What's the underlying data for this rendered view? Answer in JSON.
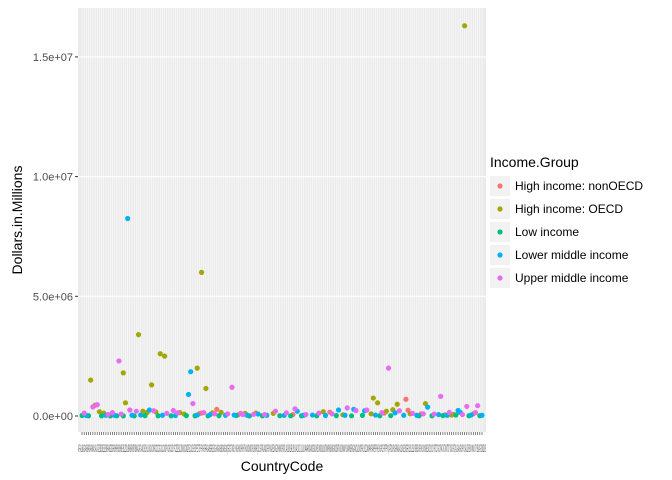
{
  "chart_data": {
    "type": "scatter",
    "title": "",
    "xlabel": "CountryCode",
    "ylabel": "Dollars.in.Millions",
    "ylim": [
      -400000,
      17000000
    ],
    "yticks": [
      0,
      5000000,
      10000000,
      15000000
    ],
    "ytick_labels": [
      "0.0e+00",
      "5.0e+06",
      "1.0e+07",
      "1.5e+07"
    ],
    "grid": true,
    "legend": {
      "title": "Income.Group",
      "position": "right"
    },
    "xtick_visible_text": "AFGALBAGOARBARGARMAUSAUTAZEBDIBELBENBFABGDBGRBHRBHSBIHBLRBLZBOLBRABRNBTNBWACAFCANCHECHLCHNCIVCMRCODCOGCOLCOMCPVCRICUBCYPCZEDEUDJIDNKDOMDZAECUEGYESPESTETHFINFJIFRAGABGBRGEOGHAGINGMBGNBGNQGRCGTMGUYHKGHNDHRVHTIHUNIDNINDIRLIRNIRQISLISRITAJAMJORJPNKAZKENKGZKHMKORKWTLAOLBNLBRLBYLKALSOLTULUXLVAMARMDAMDGMDVMEXMKDMLIMLTMMRMNEMNGMOZMRTMUSMWIMYSNAMNERNGANICNLDNORNPLNZLOMNPAKPANPERPHLPNGPOLPRTPRYQATROURUSRWASAUSDNSENSGPSLBSLESLVSRBSURSVKSVNSWESWZSYCSYRTCDTGOTHATJKTKMTTOTUNTURTZAUGAUKRURYUSAUZBVENVNMVUTYEMZAFZMBZWE",
    "series": [
      {
        "name": "High income: nonOECD",
        "color": "#F8766D",
        "points": [
          [
            54,
            100000
          ],
          [
            55,
            120000
          ],
          [
            62,
            280000
          ],
          [
            72,
            60000
          ],
          [
            75,
            80000
          ],
          [
            97,
            60000
          ],
          [
            114,
            160000
          ],
          [
            139,
            120000
          ],
          [
            149,
            700000
          ],
          [
            150,
            240000
          ],
          [
            156,
            90000
          ],
          [
            167,
            50000
          ],
          [
            171,
            70000
          ]
        ]
      },
      {
        "name": "High income: OECD",
        "color": "#A3A500",
        "points": [
          [
            4,
            1500000
          ],
          [
            6,
            450000
          ],
          [
            8,
            180000
          ],
          [
            10,
            120000
          ],
          [
            19,
            1800000
          ],
          [
            20,
            550000
          ],
          [
            26,
            3400000
          ],
          [
            28,
            200000
          ],
          [
            30,
            150000
          ],
          [
            32,
            1300000
          ],
          [
            34,
            170000
          ],
          [
            36,
            2600000
          ],
          [
            38,
            2500000
          ],
          [
            45,
            140000
          ],
          [
            47,
            80000
          ],
          [
            53,
            2000000
          ],
          [
            55,
            6000000
          ],
          [
            57,
            1150000
          ],
          [
            60,
            130000
          ],
          [
            64,
            150000
          ],
          [
            75,
            110000
          ],
          [
            80,
            120000
          ],
          [
            88,
            110000
          ],
          [
            111,
            180000
          ],
          [
            120,
            50000
          ],
          [
            133,
            90000
          ],
          [
            134,
            750000
          ],
          [
            136,
            550000
          ],
          [
            140,
            200000
          ],
          [
            143,
            260000
          ],
          [
            145,
            490000
          ],
          [
            151,
            90000
          ],
          [
            158,
            520000
          ],
          [
            170,
            40000
          ],
          [
            176,
            16300000
          ],
          [
            180,
            90000
          ]
        ]
      },
      {
        "name": "Low income",
        "color": "#00BF7D",
        "points": [
          [
            0,
            20000
          ],
          [
            3,
            10000
          ],
          [
            9,
            8000
          ],
          [
            13,
            5000
          ],
          [
            16,
            7000
          ],
          [
            19,
            6000
          ],
          [
            24,
            4000
          ],
          [
            29,
            12000
          ],
          [
            35,
            9000
          ],
          [
            41,
            8000
          ],
          [
            48,
            15000
          ],
          [
            52,
            10000
          ],
          [
            58,
            7000
          ],
          [
            63,
            12000
          ],
          [
            71,
            20000
          ],
          [
            77,
            6000
          ],
          [
            83,
            10000
          ],
          [
            91,
            13000
          ],
          [
            96,
            7000
          ],
          [
            101,
            11000
          ],
          [
            108,
            9000
          ],
          [
            117,
            15000
          ],
          [
            124,
            7000
          ],
          [
            129,
            25000
          ],
          [
            137,
            9000
          ],
          [
            142,
            14000
          ],
          [
            155,
            8000
          ],
          [
            161,
            11000
          ],
          [
            166,
            17000
          ],
          [
            172,
            40000
          ],
          [
            178,
            10000
          ],
          [
            183,
            12000
          ]
        ]
      },
      {
        "name": "Lower middle income",
        "color": "#00B0F6",
        "points": [
          [
            2,
            20000
          ],
          [
            11,
            30000
          ],
          [
            15,
            25000
          ],
          [
            21,
            8250000
          ],
          [
            23,
            30000
          ],
          [
            27,
            40000
          ],
          [
            31,
            250000
          ],
          [
            37,
            30000
          ],
          [
            43,
            20000
          ],
          [
            49,
            900000
          ],
          [
            50,
            1850000
          ],
          [
            53,
            40000
          ],
          [
            59,
            60000
          ],
          [
            66,
            30000
          ],
          [
            70,
            40000
          ],
          [
            76,
            30000
          ],
          [
            81,
            80000
          ],
          [
            85,
            30000
          ],
          [
            93,
            25000
          ],
          [
            99,
            200000
          ],
          [
            102,
            30000
          ],
          [
            106,
            40000
          ],
          [
            112,
            20000
          ],
          [
            118,
            250000
          ],
          [
            121,
            30000
          ],
          [
            125,
            280000
          ],
          [
            130,
            220000
          ],
          [
            135,
            40000
          ],
          [
            144,
            130000
          ],
          [
            148,
            30000
          ],
          [
            154,
            30000
          ],
          [
            159,
            370000
          ],
          [
            164,
            60000
          ],
          [
            168,
            30000
          ],
          [
            173,
            230000
          ],
          [
            174,
            150000
          ],
          [
            179,
            40000
          ],
          [
            184,
            30000
          ]
        ]
      },
      {
        "name": "Upper middle income",
        "color": "#E76BF3",
        "points": [
          [
            1,
            120000
          ],
          [
            5,
            380000
          ],
          [
            7,
            470000
          ],
          [
            12,
            60000
          ],
          [
            14,
            140000
          ],
          [
            17,
            2300000
          ],
          [
            18,
            80000
          ],
          [
            22,
            250000
          ],
          [
            25,
            200000
          ],
          [
            33,
            220000
          ],
          [
            39,
            110000
          ],
          [
            42,
            230000
          ],
          [
            44,
            130000
          ],
          [
            51,
            520000
          ],
          [
            56,
            140000
          ],
          [
            61,
            90000
          ],
          [
            67,
            90000
          ],
          [
            69,
            1200000
          ],
          [
            73,
            110000
          ],
          [
            74,
            60000
          ],
          [
            79,
            70000
          ],
          [
            84,
            60000
          ],
          [
            89,
            200000
          ],
          [
            94,
            130000
          ],
          [
            98,
            300000
          ],
          [
            103,
            60000
          ],
          [
            109,
            120000
          ],
          [
            115,
            90000
          ],
          [
            122,
            340000
          ],
          [
            126,
            230000
          ],
          [
            131,
            250000
          ],
          [
            138,
            140000
          ],
          [
            141,
            2000000
          ],
          [
            146,
            220000
          ],
          [
            152,
            110000
          ],
          [
            157,
            90000
          ],
          [
            162,
            80000
          ],
          [
            165,
            820000
          ],
          [
            169,
            150000
          ],
          [
            175,
            60000
          ],
          [
            177,
            400000
          ],
          [
            181,
            140000
          ],
          [
            182,
            430000
          ]
        ]
      }
    ]
  }
}
